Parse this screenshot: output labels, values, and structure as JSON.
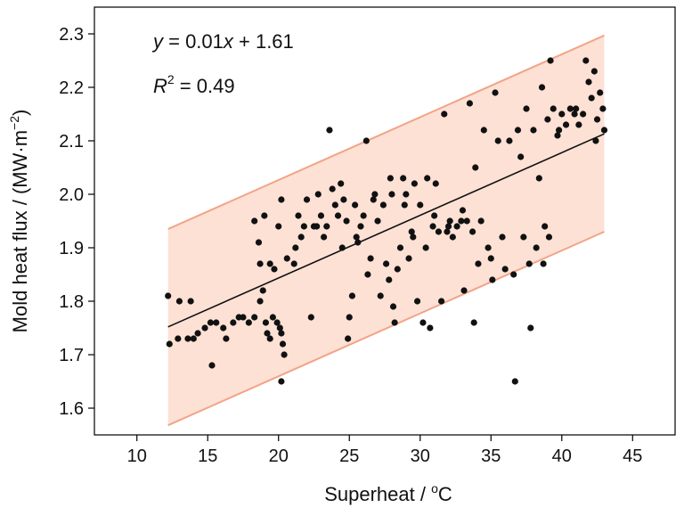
{
  "chart_data": {
    "type": "scatter",
    "title": "",
    "xlabel_main": "Superheat / ",
    "xlabel_sup": "o",
    "xlabel_unit": "C",
    "ylabel": "Mold heat flux / (MW·m",
    "ylabel_sup": "−2",
    "ylabel_close": ")",
    "xlim": [
      7,
      48
    ],
    "ylim": [
      1.55,
      2.35
    ],
    "xticks": [
      10,
      15,
      20,
      25,
      30,
      35,
      40,
      45
    ],
    "yticks": [
      1.6,
      1.7,
      1.8,
      1.9,
      2.0,
      2.1,
      2.2,
      2.3
    ],
    "x_tick_labels": [
      "10",
      "15",
      "20",
      "25",
      "30",
      "35",
      "40",
      "45"
    ],
    "y_tick_labels": [
      "1.6",
      "1.7",
      "1.8",
      "1.9",
      "2.0",
      "2.1",
      "2.2",
      "2.3"
    ],
    "grid": false,
    "fit": {
      "equation_y": "y",
      "equation_rest": " = 0.01",
      "equation_x": "x",
      "equation_end": " + 1.61",
      "r2_label": "R",
      "r2_sup": "2",
      "r2_value": " = 0.49",
      "line": [
        [
          12.2,
          1.752
        ],
        [
          43,
          2.113
        ]
      ]
    },
    "band": {
      "upper": [
        [
          12.2,
          1.935
        ],
        [
          43,
          2.297
        ]
      ],
      "lower": [
        [
          12.2,
          1.568
        ],
        [
          43,
          1.93
        ]
      ],
      "fill": "#fde1d5",
      "edge": "#f2a488"
    },
    "colors": {
      "points": "#111111",
      "fit_line": "#111111"
    },
    "points": [
      [
        12.2,
        1.81
      ],
      [
        12.3,
        1.72
      ],
      [
        12.9,
        1.73
      ],
      [
        13.0,
        1.8
      ],
      [
        13.6,
        1.73
      ],
      [
        13.8,
        1.8
      ],
      [
        14.0,
        1.73
      ],
      [
        14.3,
        1.74
      ],
      [
        15.3,
        1.68
      ],
      [
        14.8,
        1.75
      ],
      [
        15.2,
        1.76
      ],
      [
        15.6,
        1.76
      ],
      [
        16.1,
        1.75
      ],
      [
        16.3,
        1.73
      ],
      [
        16.8,
        1.76
      ],
      [
        17.2,
        1.77
      ],
      [
        17.5,
        1.77
      ],
      [
        17.9,
        1.76
      ],
      [
        18.3,
        1.77
      ],
      [
        18.7,
        1.8
      ],
      [
        18.9,
        1.82
      ],
      [
        19.1,
        1.76
      ],
      [
        19.2,
        1.74
      ],
      [
        19.4,
        1.73
      ],
      [
        19.6,
        1.77
      ],
      [
        19.9,
        1.76
      ],
      [
        20.1,
        1.75
      ],
      [
        20.2,
        1.74
      ],
      [
        20.3,
        1.72
      ],
      [
        20.4,
        1.7
      ],
      [
        20.2,
        1.65
      ],
      [
        18.3,
        1.95
      ],
      [
        18.6,
        1.91
      ],
      [
        18.7,
        1.87
      ],
      [
        19.0,
        1.96
      ],
      [
        19.4,
        1.87
      ],
      [
        19.7,
        1.86
      ],
      [
        20.0,
        1.94
      ],
      [
        20.2,
        1.99
      ],
      [
        20.6,
        1.88
      ],
      [
        21.1,
        1.87
      ],
      [
        21.2,
        1.9
      ],
      [
        21.4,
        1.96
      ],
      [
        21.8,
        1.94
      ],
      [
        22.0,
        1.99
      ],
      [
        22.3,
        1.77
      ],
      [
        22.5,
        1.94
      ],
      [
        22.8,
        2.0
      ],
      [
        23.0,
        1.96
      ],
      [
        23.2,
        1.92
      ],
      [
        23.4,
        1.94
      ],
      [
        23.6,
        2.12
      ],
      [
        23.8,
        2.01
      ],
      [
        24.0,
        1.98
      ],
      [
        24.2,
        1.96
      ],
      [
        24.4,
        2.02
      ],
      [
        24.6,
        1.99
      ],
      [
        24.8,
        1.95
      ],
      [
        24.9,
        1.73
      ],
      [
        25.0,
        1.77
      ],
      [
        25.2,
        1.81
      ],
      [
        25.4,
        1.98
      ],
      [
        25.6,
        1.91
      ],
      [
        25.8,
        1.94
      ],
      [
        26.0,
        1.96
      ],
      [
        26.2,
        2.1
      ],
      [
        26.3,
        1.85
      ],
      [
        26.5,
        1.88
      ],
      [
        26.7,
        1.99
      ],
      [
        27.0,
        1.95
      ],
      [
        27.2,
        1.81
      ],
      [
        27.4,
        1.98
      ],
      [
        27.6,
        1.87
      ],
      [
        27.8,
        1.84
      ],
      [
        28.0,
        2.0
      ],
      [
        28.1,
        1.79
      ],
      [
        28.2,
        1.76
      ],
      [
        28.4,
        1.86
      ],
      [
        28.6,
        1.9
      ],
      [
        28.8,
        2.03
      ],
      [
        29.0,
        2.0
      ],
      [
        29.2,
        1.88
      ],
      [
        29.4,
        1.93
      ],
      [
        29.6,
        2.02
      ],
      [
        29.8,
        1.8
      ],
      [
        30.0,
        1.98
      ],
      [
        30.2,
        1.76
      ],
      [
        30.4,
        1.9
      ],
      [
        30.5,
        2.03
      ],
      [
        30.7,
        1.75
      ],
      [
        30.9,
        1.94
      ],
      [
        31.1,
        2.02
      ],
      [
        31.3,
        1.93
      ],
      [
        31.5,
        1.8
      ],
      [
        31.7,
        2.15
      ],
      [
        31.9,
        1.93
      ],
      [
        32.1,
        1.95
      ],
      [
        32.3,
        1.92
      ],
      [
        32.6,
        1.94
      ],
      [
        32.9,
        1.95
      ],
      [
        33.1,
        1.82
      ],
      [
        33.3,
        1.95
      ],
      [
        33.5,
        2.17
      ],
      [
        33.7,
        1.93
      ],
      [
        33.8,
        1.76
      ],
      [
        33.9,
        2.05
      ],
      [
        34.1,
        1.87
      ],
      [
        34.3,
        1.95
      ],
      [
        34.5,
        2.12
      ],
      [
        34.8,
        1.9
      ],
      [
        35.1,
        1.84
      ],
      [
        35.3,
        2.19
      ],
      [
        35.5,
        2.1
      ],
      [
        35.8,
        1.92
      ],
      [
        36.0,
        1.86
      ],
      [
        36.3,
        2.1
      ],
      [
        36.6,
        1.85
      ],
      [
        36.7,
        1.65
      ],
      [
        36.9,
        2.12
      ],
      [
        37.1,
        2.07
      ],
      [
        37.3,
        1.92
      ],
      [
        37.5,
        2.16
      ],
      [
        37.7,
        1.87
      ],
      [
        37.8,
        1.75
      ],
      [
        38.0,
        2.12
      ],
      [
        38.2,
        1.9
      ],
      [
        38.4,
        2.03
      ],
      [
        38.6,
        2.2
      ],
      [
        38.8,
        1.94
      ],
      [
        39.0,
        2.14
      ],
      [
        39.2,
        2.25
      ],
      [
        39.4,
        2.16
      ],
      [
        39.7,
        2.11
      ],
      [
        40.0,
        2.15
      ],
      [
        40.3,
        2.13
      ],
      [
        40.6,
        2.16
      ],
      [
        40.9,
        2.15
      ],
      [
        41.2,
        2.13
      ],
      [
        41.5,
        2.15
      ],
      [
        41.7,
        2.25
      ],
      [
        41.9,
        2.21
      ],
      [
        42.1,
        2.18
      ],
      [
        42.3,
        2.23
      ],
      [
        42.5,
        2.14
      ],
      [
        42.7,
        2.19
      ],
      [
        42.9,
        2.16
      ],
      [
        43.0,
        2.12
      ],
      [
        42.4,
        2.1
      ],
      [
        41.0,
        2.16
      ],
      [
        39.8,
        2.12
      ],
      [
        39.1,
        1.92
      ],
      [
        38.7,
        1.87
      ],
      [
        35.0,
        1.88
      ],
      [
        33.0,
        1.97
      ],
      [
        32.0,
        1.94
      ],
      [
        31.0,
        1.96
      ],
      [
        29.5,
        1.92
      ],
      [
        28.9,
        1.98
      ],
      [
        27.9,
        2.03
      ],
      [
        26.8,
        2.0
      ],
      [
        25.5,
        1.92
      ],
      [
        24.5,
        1.9
      ],
      [
        22.7,
        1.94
      ],
      [
        21.6,
        1.92
      ]
    ]
  }
}
